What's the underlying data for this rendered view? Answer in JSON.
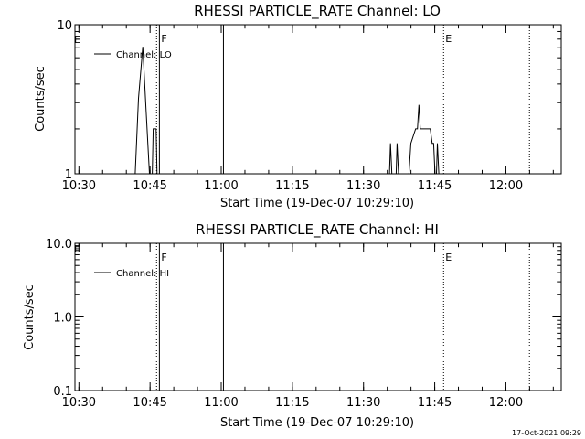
{
  "colors": {
    "background": "#ffffff",
    "ink": "#000000"
  },
  "footer": {
    "timestamp": "17-Oct-2021 09:29"
  },
  "chart_data": [
    {
      "type": "line",
      "title": "RHESSI PARTICLE_RATE Channel: LO",
      "xlabel": "Start Time (19-Dec-07 10:29:10)",
      "ylabel": "Counts/sec",
      "x_unit": "minutes after 10:29:10",
      "xlim": [
        0,
        102.5
      ],
      "ylim": [
        1,
        10
      ],
      "yscale": "log",
      "x_ticks": [
        {
          "x": 0.83,
          "label": "10:30"
        },
        {
          "x": 15.83,
          "label": "10:45"
        },
        {
          "x": 30.83,
          "label": "11:00"
        },
        {
          "x": 45.83,
          "label": "11:15"
        },
        {
          "x": 60.83,
          "label": "11:30"
        },
        {
          "x": 75.83,
          "label": "11:45"
        },
        {
          "x": 90.83,
          "label": "12:00"
        }
      ],
      "y_ticks": [
        {
          "y": 1,
          "label": "1"
        },
        {
          "y": 10,
          "label": "10"
        }
      ],
      "legend": {
        "position": "top-left",
        "entries": [
          "Channel: LO"
        ]
      },
      "markers": [
        {
          "x": 17.2,
          "style": "dotted",
          "label": ""
        },
        {
          "x": 17.8,
          "style": "solid",
          "label": "F"
        },
        {
          "x": 31.3,
          "style": "solid",
          "label": ""
        },
        {
          "x": 77.7,
          "style": "dotted",
          "label": "E"
        },
        {
          "x": 95.8,
          "style": "dotted",
          "label": ""
        }
      ],
      "corner_label": "E",
      "series": [
        {
          "name": "Channel: LO",
          "points": [
            [
              12.7,
              1
            ],
            [
              13.4,
              3.2
            ],
            [
              14.3,
              7.1
            ],
            [
              15.0,
              2.6
            ],
            [
              15.7,
              1
            ],
            [
              16.3,
              1
            ],
            [
              16.5,
              2.0
            ],
            [
              17.1,
              2.0
            ],
            [
              17.3,
              1
            ],
            [
              66.3,
              1
            ],
            [
              66.5,
              1.6
            ],
            [
              66.8,
              1
            ],
            [
              67.7,
              1
            ],
            [
              67.9,
              1.6
            ],
            [
              68.2,
              1
            ],
            [
              70.4,
              1
            ],
            [
              70.8,
              1.6
            ],
            [
              71.8,
              2.0
            ],
            [
              72.2,
              2.0
            ],
            [
              72.5,
              2.9
            ],
            [
              72.8,
              2.0
            ],
            [
              74.9,
              2.0
            ],
            [
              75.3,
              1.6
            ],
            [
              75.6,
              1.6
            ],
            [
              75.9,
              1
            ],
            [
              76.2,
              1
            ],
            [
              76.4,
              1.6
            ],
            [
              76.7,
              1
            ]
          ]
        }
      ]
    },
    {
      "type": "line",
      "title": "RHESSI PARTICLE_RATE Channel: HI",
      "xlabel": "Start Time (19-Dec-07 10:29:10)",
      "ylabel": "Counts/sec",
      "x_unit": "minutes after 10:29:10",
      "xlim": [
        0,
        102.5
      ],
      "ylim": [
        0.1,
        10
      ],
      "yscale": "log",
      "x_ticks": [
        {
          "x": 0.83,
          "label": "10:30"
        },
        {
          "x": 15.83,
          "label": "10:45"
        },
        {
          "x": 30.83,
          "label": "11:00"
        },
        {
          "x": 45.83,
          "label": "11:15"
        },
        {
          "x": 60.83,
          "label": "11:30"
        },
        {
          "x": 75.83,
          "label": "11:45"
        },
        {
          "x": 90.83,
          "label": "12:00"
        }
      ],
      "y_ticks": [
        {
          "y": 0.1,
          "label": "0.1"
        },
        {
          "y": 1,
          "label": "1.0"
        },
        {
          "y": 10,
          "label": "10.0"
        }
      ],
      "legend": {
        "position": "top-left",
        "entries": [
          "Channel: HI"
        ]
      },
      "markers": [
        {
          "x": 17.2,
          "style": "dotted",
          "label": ""
        },
        {
          "x": 17.8,
          "style": "solid",
          "label": "F"
        },
        {
          "x": 31.3,
          "style": "solid",
          "label": ""
        },
        {
          "x": 77.7,
          "style": "dotted",
          "label": "E"
        },
        {
          "x": 95.8,
          "style": "dotted",
          "label": ""
        }
      ],
      "corner_label": "E",
      "series": [
        {
          "name": "Channel: HI",
          "points": []
        }
      ]
    }
  ]
}
